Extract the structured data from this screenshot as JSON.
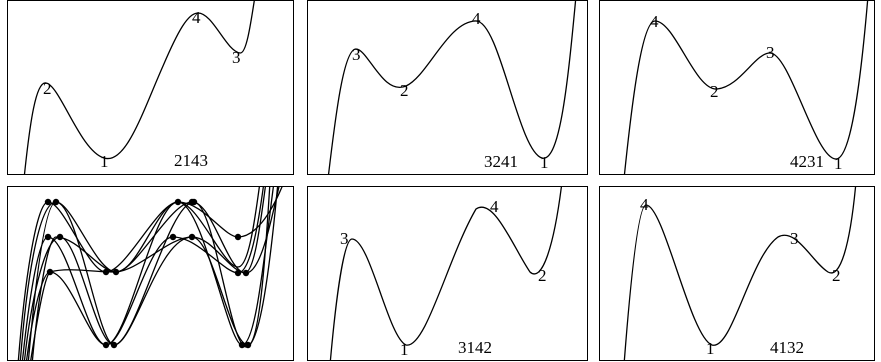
{
  "panels": [
    {
      "id": "p2143",
      "perm": "2143",
      "labels": [
        "2",
        "1",
        "4",
        "3"
      ]
    },
    {
      "id": "p3241",
      "perm": "3241",
      "labels": [
        "3",
        "2",
        "4",
        "1"
      ]
    },
    {
      "id": "p4231",
      "perm": "4231",
      "labels": [
        "4",
        "2",
        "3",
        "1"
      ]
    },
    {
      "id": "poverlay",
      "perm": "",
      "labels": []
    },
    {
      "id": "p3142",
      "perm": "3142",
      "labels": [
        "3",
        "1",
        "4",
        "2"
      ]
    },
    {
      "id": "p4132",
      "perm": "4132",
      "labels": [
        "4",
        "1",
        "3",
        "2"
      ]
    }
  ]
}
